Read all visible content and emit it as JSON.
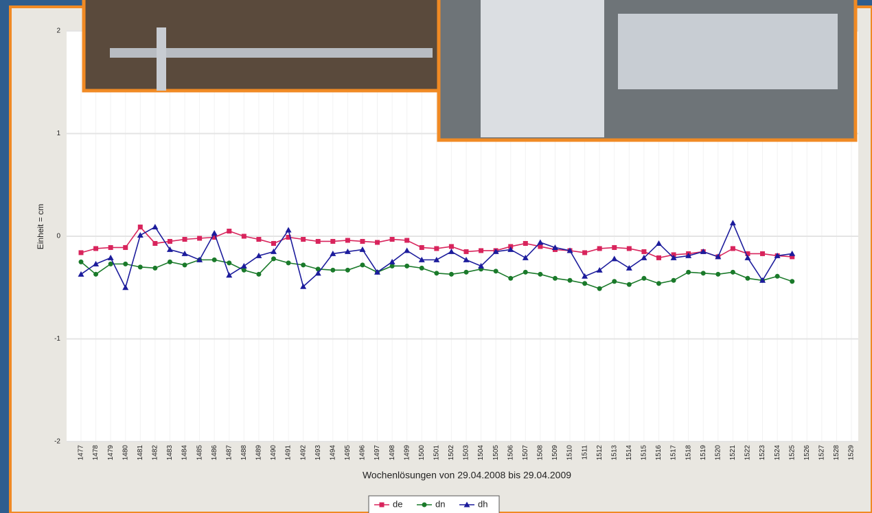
{
  "chart_data": {
    "type": "line",
    "x_label": "Wochenlösungen von 29.04.2008 bis 29.04.2009",
    "y_label": "Einheit = cm",
    "categories": [
      "1477",
      "1478",
      "1479",
      "1480",
      "1481",
      "1482",
      "1483",
      "1484",
      "1485",
      "1486",
      "1487",
      "1488",
      "1489",
      "1490",
      "1491",
      "1492",
      "1493",
      "1494",
      "1495",
      "1496",
      "1497",
      "1498",
      "1499",
      "1500",
      "1501",
      "1502",
      "1503",
      "1504",
      "1505",
      "1506",
      "1507",
      "1508",
      "1509",
      "1510",
      "1511",
      "1512",
      "1513",
      "1514",
      "1515",
      "1516",
      "1517",
      "1518",
      "1519",
      "1520",
      "1521",
      "1522",
      "1523",
      "1524",
      "1525",
      "1526",
      "1527",
      "1528",
      "1529"
    ],
    "series": [
      {
        "name": "de",
        "color": "#d8245c",
        "marker": "square",
        "values": [
          -0.16,
          -0.12,
          -0.11,
          -0.11,
          0.09,
          -0.07,
          -0.05,
          -0.03,
          -0.02,
          -0.01,
          0.05,
          0,
          -0.03,
          -0.07,
          -0.01,
          -0.03,
          -0.05,
          -0.05,
          -0.04,
          -0.05,
          -0.06,
          -0.03,
          -0.04,
          -0.11,
          -0.12,
          -0.1,
          -0.15,
          -0.14,
          -0.14,
          -0.1,
          -0.07,
          -0.1,
          -0.13,
          -0.14,
          -0.16,
          -0.12,
          -0.11,
          -0.12,
          -0.15,
          -0.21,
          -0.18,
          -0.17,
          -0.15,
          -0.2,
          -0.12,
          -0.17,
          -0.17,
          -0.19,
          -0.2,
          null,
          null,
          null,
          null
        ]
      },
      {
        "name": "dn",
        "color": "#1a7a2a",
        "marker": "circle",
        "values": [
          -0.25,
          -0.37,
          -0.27,
          -0.27,
          -0.3,
          -0.31,
          -0.25,
          -0.28,
          -0.23,
          -0.23,
          -0.26,
          -0.33,
          -0.37,
          -0.22,
          -0.26,
          -0.28,
          -0.32,
          -0.33,
          -0.33,
          -0.28,
          -0.35,
          -0.29,
          -0.29,
          -0.31,
          -0.36,
          -0.37,
          -0.35,
          -0.32,
          -0.34,
          -0.41,
          -0.35,
          -0.37,
          -0.41,
          -0.43,
          -0.46,
          -0.51,
          -0.44,
          -0.47,
          -0.41,
          -0.46,
          -0.43,
          -0.35,
          -0.36,
          -0.37,
          -0.35,
          -0.41,
          -0.43,
          -0.39,
          -0.44,
          null,
          null,
          null,
          null
        ]
      },
      {
        "name": "dh",
        "color": "#1c1c9c",
        "marker": "triangle",
        "values": [
          -0.37,
          -0.27,
          -0.21,
          -0.5,
          0.01,
          0.09,
          -0.13,
          -0.17,
          -0.23,
          0.03,
          -0.38,
          -0.29,
          -0.19,
          -0.15,
          0.06,
          -0.49,
          -0.36,
          -0.17,
          -0.15,
          -0.13,
          -0.35,
          -0.25,
          -0.14,
          -0.23,
          -0.23,
          -0.15,
          -0.23,
          -0.29,
          -0.15,
          -0.13,
          -0.21,
          -0.06,
          -0.11,
          -0.14,
          -0.39,
          -0.33,
          -0.22,
          -0.31,
          -0.21,
          -0.07,
          -0.21,
          -0.19,
          -0.15,
          -0.2,
          0.13,
          -0.21,
          -0.43,
          -0.19,
          -0.17,
          null,
          null,
          null,
          null
        ]
      }
    ],
    "ylim": [
      -2,
      2
    ],
    "yticks": [
      -2,
      -1,
      0,
      1,
      2
    ],
    "grid": true,
    "legend": "bottom"
  }
}
